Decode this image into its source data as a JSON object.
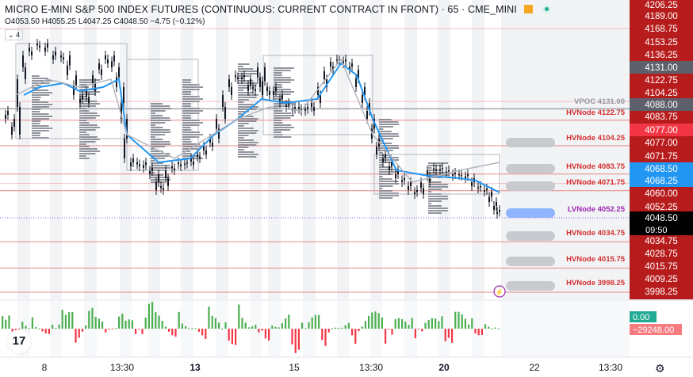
{
  "header": {
    "title": "MICRO E-MINI S&P 500 INDEX FUTURES (CONTINUOUS: CURRENT CONTRACT IN FRONT) · 65 · CME_MINI",
    "ohlc": "O4053.50 H4055.25 L4047.25 C4048.50 −4.75 (−0.12%)",
    "indicator_count": "4"
  },
  "colors": {
    "hvnode": "#d32f2f",
    "lvnode": "#9c27b0",
    "vpoc": "#9598a1",
    "price_axis_red": "#b71c1c",
    "price_axis_bright_red": "#f23645",
    "price_axis_blue": "#2196f3",
    "price_axis_gray": "#5d606b",
    "vwap": "#2196f3",
    "volume_up": "#4caf50",
    "volume_down": "#f23645"
  },
  "price_axis": {
    "ticks": [
      "4206.25",
      "4168.75",
      "4153.25",
      "4136.25",
      "4122.75",
      "4104.25",
      "4083.75",
      "4071.75",
      "4060.00",
      "4052.25",
      "4034.75",
      "4028.75",
      "4015.75",
      "4009.25",
      "3998.25"
    ],
    "highlights": [
      {
        "label": "4189.00",
        "color": "#b71c1c"
      },
      {
        "label": "4131.00",
        "color": "#5d606b"
      },
      {
        "label": "4088.00",
        "color": "#5d606b"
      },
      {
        "label": "4077.00",
        "color": "#f23645"
      },
      {
        "label": "4077.00",
        "color": "#b71c1c"
      },
      {
        "label": "4068.50",
        "color": "#2196f3"
      },
      {
        "label": "4068.25",
        "color": "#2196f3"
      },
      {
        "label": "4048.50",
        "color": "#000000"
      }
    ],
    "countdown": "09:50"
  },
  "levels": [
    {
      "label": "VPOC 4131.00",
      "kind": "vpoc"
    },
    {
      "label": "HVNode 4122.75",
      "kind": "hv"
    },
    {
      "label": "HVNode 4104.25",
      "kind": "hv"
    },
    {
      "label": "HVNode 4083.75",
      "kind": "hv"
    },
    {
      "label": "HVNode 4071.75",
      "kind": "hv"
    },
    {
      "label": "LVNode 4052.25",
      "kind": "lv"
    },
    {
      "label": "HVNode 4034.75",
      "kind": "hv"
    },
    {
      "label": "HVNode 4015.75",
      "kind": "hv"
    },
    {
      "label": "HVNode 3998.25",
      "kind": "hv"
    }
  ],
  "volume_axis": {
    "top_value": "0.00",
    "bottom_value": "−29248.00"
  },
  "time_axis": [
    "8",
    "13:30",
    "13",
    "15",
    "13:30",
    "20",
    "22",
    "13:30"
  ],
  "icons": {
    "logo": "tradingview-logo",
    "settings": "gear-icon",
    "lightning": "lightning-icon"
  }
}
